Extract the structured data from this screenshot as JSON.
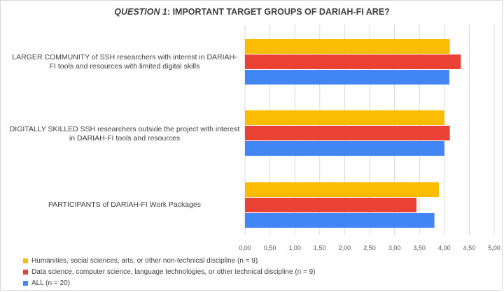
{
  "chart_data": {
    "type": "bar",
    "orientation": "horizontal",
    "title_prefix": "QUESTION 1",
    "title_rest": ": IMPORTANT TARGET GROUPS OF DARIAH-FI ARE?",
    "categories": [
      "LARGER COMMUNITY of SSH researchers with interest in DARIAH-FI tools and resources with limited digital skills",
      "DIGITALLY SKILLED SSH researchers outside the project with interest in DARIAH-FI tools and resources",
      "PARTICIPANTS of DARIAH-FI Work Packages"
    ],
    "series": [
      {
        "name": "Humanities, social sciences, arts, or other non-technical discipline (n = 9)",
        "color": "#fbbc04",
        "values": [
          4.11,
          4.0,
          3.89
        ]
      },
      {
        "name": "Data science, computer science, language technologies, or other technical discipline (n = 9)",
        "color": "#ea4335",
        "values": [
          4.33,
          4.11,
          3.44
        ]
      },
      {
        "name": "ALL (n = 20)",
        "color": "#4285f4",
        "values": [
          4.1,
          4.0,
          3.8
        ]
      }
    ],
    "xlim": [
      0,
      5
    ],
    "xticks": [
      "0,00",
      "0,50",
      "1,00",
      "1,50",
      "2,00",
      "2,50",
      "3,00",
      "3,50",
      "4,00",
      "4,50",
      "5,00"
    ],
    "grid": true,
    "legend_position": "bottom-left"
  }
}
